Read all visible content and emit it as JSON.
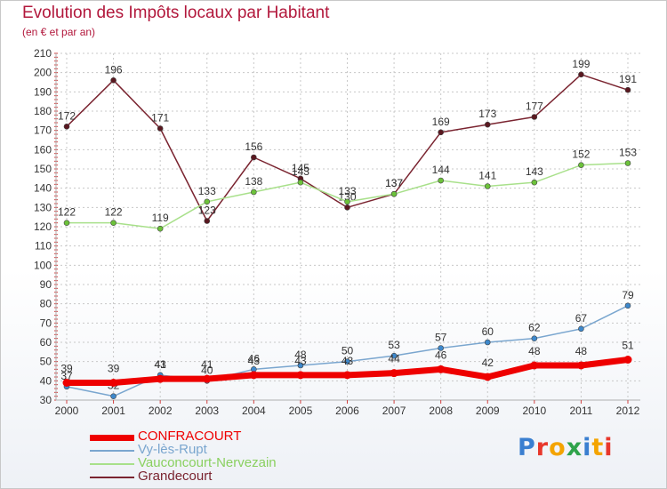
{
  "header": {
    "title": "Evolution des Impôts locaux par Habitant",
    "subtitle": "(en € et par an)"
  },
  "logo": {
    "text": "Proxiti",
    "colors": [
      "#3a7fd0",
      "#e8372b",
      "#f4a400",
      "#2ea34a",
      "#3a7fd0",
      "#f4a400",
      "#e8372b"
    ]
  },
  "chart_data": {
    "type": "line",
    "categories": [
      "2000",
      "2001",
      "2002",
      "2003",
      "2004",
      "2005",
      "2006",
      "2007",
      "2008",
      "2009",
      "2010",
      "2011",
      "2012"
    ],
    "ylim": [
      30,
      210
    ],
    "yticks": [
      30,
      40,
      50,
      60,
      70,
      80,
      90,
      100,
      110,
      120,
      130,
      140,
      150,
      160,
      170,
      180,
      190,
      200,
      210
    ],
    "grid": true,
    "legend_position": "bottom-left",
    "series": [
      {
        "name": "Grandecourt",
        "color": "#7a2430",
        "marker": "#5a1820",
        "width": 1.5,
        "values": [
          172,
          196,
          171,
          123,
          156,
          145,
          130,
          137,
          169,
          173,
          177,
          199,
          191
        ]
      },
      {
        "name": "Vauconcourt-Nervezain",
        "color": "#a8e08a",
        "marker": "#6cc23a",
        "width": 1.5,
        "values": [
          122,
          122,
          119,
          133,
          138,
          143,
          133,
          137,
          144,
          141,
          143,
          152,
          153
        ]
      },
      {
        "name": "Vy-lès-Rupt",
        "color": "#7aa6cf",
        "marker": "#3d88cc",
        "width": 1.5,
        "values": [
          37,
          32,
          43,
          40,
          46,
          48,
          50,
          53,
          57,
          60,
          62,
          67,
          79
        ]
      },
      {
        "name": "CONFRACOURT",
        "color": "#ee0000",
        "marker": "#ee0000",
        "width": 7,
        "values": [
          39,
          39,
          41,
          41,
          43,
          43,
          43,
          44,
          46,
          42,
          48,
          48,
          51
        ]
      }
    ],
    "legend_order": [
      "CONFRACOURT",
      "Vy-lès-Rupt",
      "Vauconcourt-Nervezain",
      "Grandecourt"
    ]
  }
}
